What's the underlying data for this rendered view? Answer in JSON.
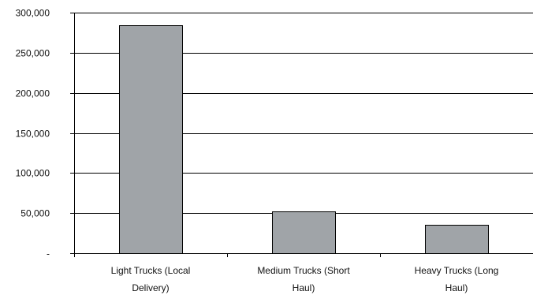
{
  "chart_data": {
    "type": "bar",
    "title": "",
    "xlabel": "",
    "ylabel": "",
    "categories": [
      [
        "Light Trucks     (Local",
        "Delivery)"
      ],
      [
        "Medium Trucks (Short",
        "Haul)"
      ],
      [
        "Heavy Trucks    (Long",
        "Haul)"
      ]
    ],
    "values": [
      284000,
      52000,
      35000
    ],
    "ylim": [
      0,
      300000
    ],
    "yticks": [
      0,
      50000,
      100000,
      150000,
      200000,
      250000,
      300000
    ],
    "ytick_labels": [
      "-",
      "50,000",
      "100,000",
      "150,000",
      "200,000",
      "250,000",
      "300,000"
    ],
    "grid": true,
    "legend": "none",
    "colors": {
      "bar_fill": "#a0a4a8",
      "bar_stroke": "#000000",
      "grid": "#000000",
      "axis": "#000000"
    }
  }
}
